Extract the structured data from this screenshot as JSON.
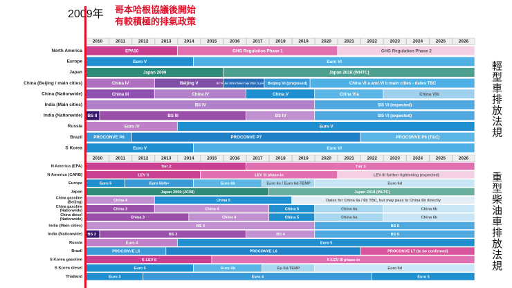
{
  "chart_data": {
    "type": "timeline",
    "marker_year": "2009年",
    "headline": [
      "哥本哈根協議後開始",
      "有較積極的排氣政策"
    ],
    "years": [
      2010,
      2011,
      2012,
      2013,
      2014,
      2015,
      2016,
      2017,
      2018,
      2019,
      2020,
      2021,
      2022,
      2023,
      2024,
      2025,
      2026
    ],
    "xlim": [
      2010,
      2027
    ],
    "sections": [
      {
        "side_label": "輕型車排放法規",
        "rows": [
          {
            "label": "North America",
            "bars": [
              {
                "label": "EPA10",
                "start": 2010,
                "end": 2014,
                "color": "#c8408f"
              },
              {
                "label": "GHG Regulation Phase 1",
                "start": 2014,
                "end": 2021,
                "color": "#e070b0"
              },
              {
                "label": "GHG Regulation Phase 2",
                "start": 2021,
                "end": 2027,
                "color": "#f5cfe3"
              }
            ]
          },
          {
            "label": "Europe",
            "bars": [
              {
                "label": "Euro V",
                "start": 2010,
                "end": 2014.7,
                "color": "#1f8fd0"
              },
              {
                "label": "Euro VI",
                "start": 2014.7,
                "end": 2027,
                "color": "#4fb0e6"
              }
            ]
          },
          {
            "label": "Japan",
            "bars": [
              {
                "label": "Japan 2009",
                "start": 2010,
                "end": 2016,
                "color": "#2f8a78"
              },
              {
                "label": "Japan 2016 (WHTC)",
                "start": 2016,
                "end": 2027,
                "color": "#4ea090"
              }
            ]
          },
          {
            "label": "China (Beijing / main cities)",
            "bars": [
              {
                "label": "China IV",
                "start": 2010,
                "end": 2013,
                "color": "#b070c0"
              },
              {
                "label": "Beijing V",
                "start": 2013,
                "end": 2016,
                "color": "#8050a8"
              },
              {
                "label": "BJ V+ Jan 2016 China V Apr 2016 11 provinces",
                "start": 2016,
                "end": 2017.8,
                "color": "#2a6fb8"
              },
              {
                "label": "Beijing VI (proposed)",
                "start": 2017.8,
                "end": 2019.8,
                "color": "#3a9ad8"
              },
              {
                "label": "China VI a and VI b main cities - dates TBC",
                "start": 2019.8,
                "end": 2027,
                "color": "#4fb0e6"
              }
            ]
          },
          {
            "label": "China (Nationwide)",
            "bars": [
              {
                "label": "China III",
                "start": 2010,
                "end": 2013,
                "color": "#9050b0"
              },
              {
                "label": "China IV",
                "start": 2013,
                "end": 2017,
                "color": "#b080c8"
              },
              {
                "label": "China V",
                "start": 2017,
                "end": 2020,
                "color": "#1f8fd0"
              },
              {
                "label": "China VIa",
                "start": 2020,
                "end": 2023,
                "color": "#5bb5e5"
              },
              {
                "label": "China VIb",
                "start": 2023,
                "end": 2027,
                "color": "#9fd0ee"
              }
            ]
          },
          {
            "label": "India (Main cities)",
            "bars": [
              {
                "label": "BS IV",
                "start": 2010,
                "end": 2020,
                "color": "#b080c8"
              },
              {
                "label": "BS VI (expected)",
                "start": 2020,
                "end": 2027,
                "color": "#4fa8e0"
              }
            ]
          },
          {
            "label": "India (Nationwide)",
            "bars": [
              {
                "label": "BS II",
                "start": 2010,
                "end": 2010.6,
                "color": "#3a1a6a"
              },
              {
                "label": "BS III",
                "start": 2010.6,
                "end": 2017,
                "color": "#9a50a8"
              },
              {
                "label": "BS IV",
                "start": 2017,
                "end": 2020,
                "color": "#c090d0"
              },
              {
                "label": "BS VI (expected)",
                "start": 2020,
                "end": 2027,
                "color": "#4fa8e0"
              }
            ]
          },
          {
            "label": "Russia",
            "bars": [
              {
                "label": "Euro IV",
                "start": 2010,
                "end": 2014,
                "color": "#c080c8"
              },
              {
                "label": "Euro V",
                "start": 2014,
                "end": 2027,
                "color": "#1f8fd0"
              }
            ]
          },
          {
            "label": "Brazil",
            "bars": [
              {
                "label": "PROCONVE P6",
                "start": 2010,
                "end": 2012,
                "color": "#3a9ad8"
              },
              {
                "label": "PROCONVE P7",
                "start": 2012,
                "end": 2022,
                "color": "#1f80c8"
              },
              {
                "label": "PROCONVE P6 (T&C)",
                "start": 2022,
                "end": 2027,
                "color": "#5bb5e5"
              }
            ]
          },
          {
            "label": "S Korea",
            "bars": [
              {
                "label": "Euro V",
                "start": 2010,
                "end": 2014.7,
                "color": "#1f8fd0"
              },
              {
                "label": "Euro VI",
                "start": 2014.7,
                "end": 2027,
                "color": "#4fb0e6"
              }
            ]
          }
        ]
      },
      {
        "side_label": "重型柴油車排放法規",
        "rows": [
          {
            "label": "N America (EPA)",
            "bars": [
              {
                "label": "Tier 2",
                "start": 2010,
                "end": 2017,
                "color": "#c8408f"
              },
              {
                "label": "Tier 3",
                "start": 2017,
                "end": 2027,
                "color": "#e070b0"
              }
            ]
          },
          {
            "label": "N America (CARB)",
            "bars": [
              {
                "label": "LEV II",
                "start": 2010,
                "end": 2015,
                "color": "#c8408f"
              },
              {
                "label": "LEV III phase-in",
                "start": 2015,
                "end": 2021,
                "color": "#e070b0"
              },
              {
                "label": "LEV III further tightening (expected)",
                "start": 2021,
                "end": 2027,
                "color": "#f5cfe3"
              }
            ]
          },
          {
            "label": "Europe",
            "bars": [
              {
                "label": "Euro 5",
                "start": 2010,
                "end": 2011.7,
                "color": "#1f8fd0"
              },
              {
                "label": "Euro 5b/b+",
                "start": 2011.7,
                "end": 2014.7,
                "color": "#3a9ad8"
              },
              {
                "label": "Euro 6b",
                "start": 2014.7,
                "end": 2017.7,
                "color": "#5bb5e5"
              },
              {
                "label": "Euro 6c / Euro 6d-TEMP",
                "start": 2017.7,
                "end": 2020,
                "color": "#a8d8f0"
              },
              {
                "label": "Euro 6d",
                "start": 2020,
                "end": 2027,
                "color": "#c8e6f5"
              }
            ]
          },
          {
            "label": "Japan",
            "bars": [
              {
                "label": "Japan 2009 (JC08)",
                "start": 2010,
                "end": 2018,
                "color": "#2f8a78"
              },
              {
                "label": "Japan 2018 (WLTC)",
                "start": 2018,
                "end": 2027,
                "color": "#6aae9e"
              }
            ]
          },
          {
            "label": [
              "China gasoline",
              "(Beijing)"
            ],
            "bars": [
              {
                "label": "China 4",
                "start": 2010,
                "end": 2013,
                "color": "#c090d0"
              },
              {
                "label": "China 5",
                "start": 2013,
                "end": 2019,
                "color": "#1f8fd0"
              },
              {
                "label": "Dates for China 6a / 6b TBC, but may pass to China 6b directly",
                "start": 2019,
                "end": 2027,
                "color": "#e2edf6"
              }
            ]
          },
          {
            "label": [
              "China gasoline",
              "(Nationwide)"
            ],
            "bars": [
              {
                "label": "China 3",
                "start": 2010,
                "end": 2013,
                "color": "#9a50a8"
              },
              {
                "label": "China 4",
                "start": 2013,
                "end": 2018,
                "color": "#c090d0"
              },
              {
                "label": "China 5",
                "start": 2018,
                "end": 2020,
                "color": "#1f8fd0"
              },
              {
                "label": "China 6a",
                "start": 2020,
                "end": 2023,
                "color": "#a8d8f0"
              },
              {
                "label": "China 6b",
                "start": 2023,
                "end": 2027,
                "color": "#c8e6f5"
              }
            ]
          },
          {
            "label": [
              "China diesel",
              "(Nationwide)"
            ],
            "bars": [
              {
                "label": "China 3",
                "start": 2010,
                "end": 2014.5,
                "color": "#9a50a8"
              },
              {
                "label": "China 4",
                "start": 2014.5,
                "end": 2018,
                "color": "#c090d0"
              },
              {
                "label": "China 5",
                "start": 2018,
                "end": 2020,
                "color": "#1f8fd0"
              },
              {
                "label": "China 6a",
                "start": 2020,
                "end": 2023,
                "color": "#a8d8f0"
              },
              {
                "label": "China 6b",
                "start": 2023,
                "end": 2027,
                "color": "#c8e6f5"
              }
            ]
          },
          {
            "label": "India (Main cities)",
            "bars": [
              {
                "label": "BS 4",
                "start": 2010,
                "end": 2020,
                "color": "#c090d0"
              },
              {
                "label": "BS 6",
                "start": 2020,
                "end": 2027,
                "color": "#4fa8e0"
              }
            ]
          },
          {
            "label": "India (Nationwide)",
            "bars": [
              {
                "label": "BS 2",
                "start": 2010,
                "end": 2010.6,
                "color": "#3a1a6a"
              },
              {
                "label": "BS 3",
                "start": 2010.6,
                "end": 2017,
                "color": "#9a50a8"
              },
              {
                "label": "BS 4",
                "start": 2017,
                "end": 2020,
                "color": "#c090d0"
              },
              {
                "label": "BS 6",
                "start": 2020,
                "end": 2027,
                "color": "#4fa8e0"
              }
            ]
          },
          {
            "label": "Russia",
            "bars": [
              {
                "label": "Euro 4",
                "start": 2010,
                "end": 2014,
                "color": "#c080c8"
              },
              {
                "label": "Euro 5",
                "start": 2014,
                "end": 2027,
                "color": "#1f8fd0"
              }
            ]
          },
          {
            "label": "Brazil",
            "bars": [
              {
                "label": "PROCONVE L5",
                "start": 2010,
                "end": 2013.5,
                "color": "#3a9ad8"
              },
              {
                "label": "PROCONVE L6",
                "start": 2013.5,
                "end": 2022,
                "color": "#1f80c8"
              },
              {
                "label": "PROCONVE L7 (to be confirmed)",
                "start": 2022,
                "end": 2027,
                "color": "#d8559c"
              }
            ]
          },
          {
            "label": "S Korea gasoline",
            "bars": [
              {
                "label": "K-LEV II",
                "start": 2010,
                "end": 2015.5,
                "color": "#c8408f"
              },
              {
                "label": "K-LEV III phase-in",
                "start": 2015.5,
                "end": 2027,
                "color": "#e070b0"
              }
            ]
          },
          {
            "label": "S Korea diesel",
            "bars": [
              {
                "label": "Euro 5",
                "start": 2010,
                "end": 2014.7,
                "color": "#1f8fd0"
              },
              {
                "label": "Euro 6b",
                "start": 2014.7,
                "end": 2017.7,
                "color": "#5bb5e5"
              },
              {
                "label": "Eu 6d-TEMP",
                "start": 2017.7,
                "end": 2020,
                "color": "#a8d8f0"
              },
              {
                "label": "Euro 6d",
                "start": 2020,
                "end": 2027,
                "color": "#c8e6f5"
              }
            ]
          },
          {
            "label": "Thailand",
            "bars": [
              {
                "label": "Euro 3",
                "start": 2010,
                "end": 2012.5,
                "color": "#1f8fd0"
              },
              {
                "label": "Euro 4",
                "start": 2012.5,
                "end": 2022.5,
                "color": "#3a9ad8"
              },
              {
                "label": "Euro 5",
                "start": 2022.5,
                "end": 2027,
                "color": "#1f8fd0"
              }
            ]
          }
        ]
      }
    ]
  }
}
